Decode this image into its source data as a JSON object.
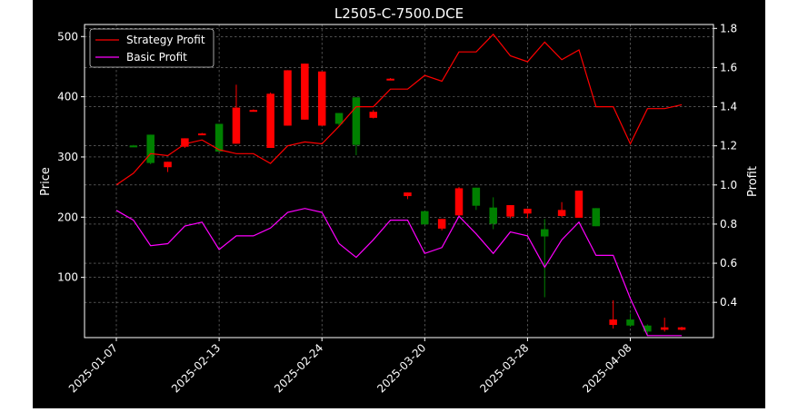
{
  "chart_data": {
    "type": "candlestick",
    "title": "L2505-C-7500.DCE",
    "xlabel": "",
    "ylabel_left": "Price",
    "ylabel_right": "Profit",
    "ylim_left": [
      0,
      520
    ],
    "ylim_right": [
      0.22,
      1.82
    ],
    "yticks_left": [
      100,
      200,
      300,
      400,
      500
    ],
    "yticks_right": [
      0.4,
      0.6,
      0.8,
      1.0,
      1.2,
      1.4,
      1.6,
      1.8
    ],
    "xtick_labels": [
      "2025-01-07",
      "2025-02-13",
      "2025-02-24",
      "2025-03-20",
      "2025-03-28",
      "2025-04-08"
    ],
    "xtick_positions": [
      0,
      6,
      12,
      18,
      24,
      30
    ],
    "grid": true,
    "legend_position": "top-left",
    "colors": {
      "background": "#000000",
      "up_candle": "#008000",
      "down_candle": "#ff0000",
      "strategy": "#ff0000",
      "basic": "#ff00ff",
      "grid": "#808080",
      "text": "#ffffff"
    },
    "candles": [
      {
        "i": 1,
        "open": 319,
        "close": 319,
        "high": 320,
        "low": 318
      },
      {
        "i": 2,
        "open": 290,
        "close": 337,
        "high": 337,
        "low": 288
      },
      {
        "i": 3,
        "open": 292,
        "close": 283,
        "high": 292,
        "low": 275
      },
      {
        "i": 4,
        "open": 331,
        "close": 317,
        "high": 331,
        "low": 315
      },
      {
        "i": 5,
        "open": 339,
        "close": 338,
        "high": 340,
        "low": 337
      },
      {
        "i": 6,
        "open": 309,
        "close": 355,
        "high": 355,
        "low": 309
      },
      {
        "i": 7,
        "open": 382,
        "close": 322,
        "high": 420,
        "low": 322
      },
      {
        "i": 8,
        "open": 378,
        "close": 377,
        "high": 379,
        "low": 376
      },
      {
        "i": 9,
        "open": 405,
        "close": 315,
        "high": 407,
        "low": 315
      },
      {
        "i": 10,
        "open": 444,
        "close": 352,
        "high": 444,
        "low": 352
      },
      {
        "i": 11,
        "open": 455,
        "close": 362,
        "high": 455,
        "low": 362
      },
      {
        "i": 12,
        "open": 442,
        "close": 352,
        "high": 442,
        "low": 352
      },
      {
        "i": 13,
        "open": 355,
        "close": 373,
        "high": 373,
        "low": 352
      },
      {
        "i": 14,
        "open": 320,
        "close": 399,
        "high": 399,
        "low": 303
      },
      {
        "i": 15,
        "open": 375,
        "close": 365,
        "high": 378,
        "low": 364
      },
      {
        "i": 16,
        "open": 430,
        "close": 429,
        "high": 431,
        "low": 428
      },
      {
        "i": 17,
        "open": 241,
        "close": 235,
        "high": 241,
        "low": 230
      },
      {
        "i": 18,
        "open": 188,
        "close": 210,
        "high": 210,
        "low": 188
      },
      {
        "i": 19,
        "open": 197,
        "close": 181,
        "high": 197,
        "low": 178
      },
      {
        "i": 20,
        "open": 248,
        "close": 203,
        "high": 250,
        "low": 201
      },
      {
        "i": 21,
        "open": 219,
        "close": 249,
        "high": 249,
        "low": 212
      },
      {
        "i": 22,
        "open": 189,
        "close": 216,
        "high": 233,
        "low": 180
      },
      {
        "i": 23,
        "open": 220,
        "close": 201,
        "high": 220,
        "low": 198
      },
      {
        "i": 24,
        "open": 214,
        "close": 206,
        "high": 214,
        "low": 198
      },
      {
        "i": 25,
        "open": 168,
        "close": 180,
        "high": 197,
        "low": 67
      },
      {
        "i": 26,
        "open": 212,
        "close": 202,
        "high": 225,
        "low": 200
      },
      {
        "i": 27,
        "open": 244,
        "close": 199,
        "high": 244,
        "low": 199
      },
      {
        "i": 28,
        "open": 185,
        "close": 215,
        "high": 215,
        "low": 185
      },
      {
        "i": 29,
        "open": 30,
        "close": 21,
        "high": 62,
        "low": 15
      },
      {
        "i": 30,
        "open": 20,
        "close": 30,
        "high": 40,
        "low": 18
      },
      {
        "i": 31,
        "open": 10,
        "close": 20,
        "high": 22,
        "low": 5
      },
      {
        "i": 32,
        "open": 17,
        "close": 13,
        "high": 33,
        "low": 10
      },
      {
        "i": 33,
        "open": 17,
        "close": 13,
        "high": 18,
        "low": 12
      }
    ],
    "series": [
      {
        "name": "Strategy Profit",
        "axis": "right",
        "x": [
          0,
          1,
          2,
          3,
          4,
          5,
          6,
          7,
          8,
          9,
          10,
          11,
          12,
          13,
          14,
          15,
          16,
          17,
          18,
          19,
          20,
          21,
          22,
          23,
          24,
          25,
          26,
          27,
          28,
          29,
          30,
          31,
          32,
          33
        ],
        "values": [
          1.0,
          1.06,
          1.16,
          1.15,
          1.21,
          1.23,
          1.18,
          1.16,
          1.16,
          1.11,
          1.2,
          1.22,
          1.21,
          1.3,
          1.4,
          1.4,
          1.49,
          1.49,
          1.56,
          1.53,
          1.68,
          1.68,
          1.77,
          1.66,
          1.63,
          1.73,
          1.64,
          1.69,
          1.4,
          1.4,
          1.21,
          1.39,
          1.39,
          1.41
        ]
      },
      {
        "name": "Basic Profit",
        "axis": "right",
        "x": [
          0,
          1,
          2,
          3,
          4,
          5,
          6,
          7,
          8,
          9,
          10,
          11,
          12,
          13,
          14,
          15,
          16,
          17,
          18,
          19,
          20,
          21,
          22,
          23,
          24,
          25,
          26,
          27,
          28,
          29,
          30,
          31,
          32,
          33
        ],
        "values": [
          0.87,
          0.82,
          0.69,
          0.7,
          0.79,
          0.81,
          0.67,
          0.74,
          0.74,
          0.78,
          0.86,
          0.88,
          0.86,
          0.7,
          0.63,
          0.72,
          0.82,
          0.82,
          0.65,
          0.68,
          0.84,
          0.75,
          0.65,
          0.76,
          0.74,
          0.58,
          0.72,
          0.81,
          0.64,
          0.64,
          0.42,
          0.23,
          0.23,
          0.23
        ]
      }
    ]
  }
}
